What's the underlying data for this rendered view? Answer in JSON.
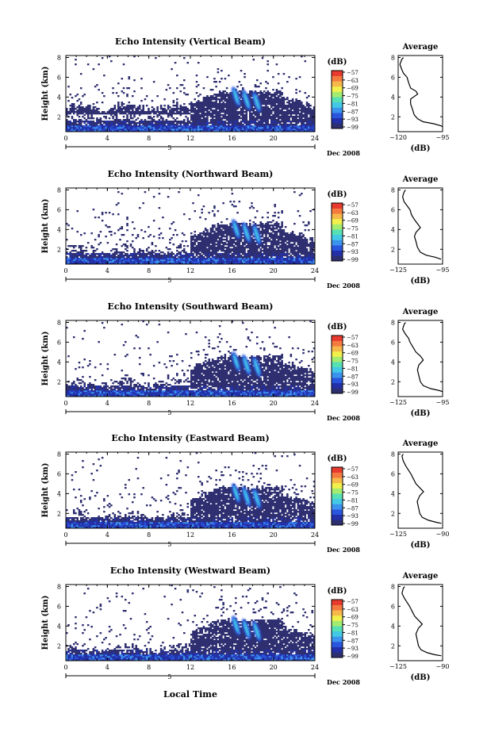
{
  "figure": {
    "x_axis_label": "Local Time",
    "date_label": "Dec 2008",
    "x_day_label": "5",
    "colorbar_unit": "(dB)",
    "profile_title": "Average",
    "profile_xlabel": "(dB)"
  },
  "colors": {
    "scale": [
      "#2e2f70",
      "#2330a8",
      "#2a55dd",
      "#3c93ee",
      "#43c8e6",
      "#56e0b4",
      "#a4ec70",
      "#f1f04c",
      "#f6b84a",
      "#f47a40",
      "#e83a2e"
    ],
    "background_echo": "#2e2f70"
  },
  "chart_data": [
    {
      "type": "heatmap",
      "title": "Echo Intensity (Vertical Beam)",
      "ylabel": "Height (km)",
      "x_ticks": [
        0,
        4,
        8,
        12,
        16,
        20,
        24
      ],
      "y_ticks": [
        2,
        4,
        6,
        8
      ],
      "xlim": [
        0,
        24
      ],
      "ylim": [
        0.5,
        8.2
      ],
      "colorbar_ticks": [
        -57,
        -63,
        -69,
        -75,
        -81,
        -87,
        -93,
        -99
      ],
      "profile": {
        "xlim": [
          -120,
          -95
        ],
        "x_ticks": [
          -120,
          -95
        ],
        "ylim": [
          0.5,
          8.2
        ],
        "y_ticks": [
          2,
          4,
          6,
          8
        ],
        "points": [
          [
            -95,
            1.0
          ],
          [
            -96,
            1.1
          ],
          [
            -100,
            1.3
          ],
          [
            -106,
            1.5
          ],
          [
            -109,
            1.8
          ],
          [
            -111,
            2.2
          ],
          [
            -112,
            2.8
          ],
          [
            -113,
            3.3
          ],
          [
            -113,
            3.8
          ],
          [
            -109,
            4.3
          ],
          [
            -110,
            4.6
          ],
          [
            -113,
            4.9
          ],
          [
            -114,
            5.4
          ],
          [
            -115,
            6.0
          ],
          [
            -117,
            6.4
          ],
          [
            -118,
            6.8
          ],
          [
            -119,
            7.3
          ],
          [
            -118,
            7.8
          ],
          [
            -117,
            8.0
          ]
        ]
      }
    },
    {
      "type": "heatmap",
      "title": "Echo Intensity (Northward Beam)",
      "ylabel": "Height (km)",
      "x_ticks": [
        0,
        4,
        8,
        12,
        16,
        20,
        24
      ],
      "y_ticks": [
        2,
        4,
        6,
        8
      ],
      "xlim": [
        0,
        24
      ],
      "ylim": [
        0.5,
        8.2
      ],
      "colorbar_ticks": [
        -57,
        -63,
        -69,
        -75,
        -81,
        -87,
        -93,
        -99
      ],
      "profile": {
        "xlim": [
          -125,
          -95
        ],
        "x_ticks": [
          -125,
          -95
        ],
        "ylim": [
          0.5,
          8.2
        ],
        "y_ticks": [
          2,
          4,
          6,
          8
        ],
        "points": [
          [
            -96,
            1.0
          ],
          [
            -100,
            1.2
          ],
          [
            -106,
            1.4
          ],
          [
            -110,
            1.7
          ],
          [
            -112,
            2.2
          ],
          [
            -113,
            2.8
          ],
          [
            -114,
            3.3
          ],
          [
            -113,
            3.7
          ],
          [
            -110,
            4.2
          ],
          [
            -112,
            4.6
          ],
          [
            -114,
            5.0
          ],
          [
            -116,
            5.5
          ],
          [
            -117,
            6.0
          ],
          [
            -119,
            6.4
          ],
          [
            -121,
            6.8
          ],
          [
            -122,
            7.3
          ],
          [
            -121,
            7.8
          ],
          [
            -120,
            8.0
          ]
        ]
      }
    },
    {
      "type": "heatmap",
      "title": "Echo Intensity (Southward Beam)",
      "ylabel": "Height (km)",
      "x_ticks": [
        0,
        4,
        8,
        12,
        16,
        20,
        24
      ],
      "y_ticks": [
        2,
        4,
        6,
        8
      ],
      "xlim": [
        0,
        24
      ],
      "ylim": [
        0.5,
        8.2
      ],
      "colorbar_ticks": [
        -57,
        -63,
        -69,
        -75,
        -81,
        -87,
        -93,
        -99
      ],
      "profile": {
        "xlim": [
          -125,
          -95
        ],
        "x_ticks": [
          -125,
          -95
        ],
        "ylim": [
          0.5,
          8.2
        ],
        "y_ticks": [
          2,
          4,
          6,
          8
        ],
        "points": [
          [
            -95,
            1.0
          ],
          [
            -97,
            1.1
          ],
          [
            -103,
            1.3
          ],
          [
            -108,
            1.6
          ],
          [
            -110,
            2.0
          ],
          [
            -111,
            2.6
          ],
          [
            -112,
            3.2
          ],
          [
            -111,
            3.7
          ],
          [
            -108,
            4.2
          ],
          [
            -110,
            4.6
          ],
          [
            -113,
            5.0
          ],
          [
            -115,
            5.5
          ],
          [
            -117,
            6.0
          ],
          [
            -118,
            6.4
          ],
          [
            -120,
            6.8
          ],
          [
            -122,
            7.3
          ],
          [
            -121,
            7.8
          ],
          [
            -120,
            8.0
          ]
        ]
      }
    },
    {
      "type": "heatmap",
      "title": "Echo Intensity (Eastward Beam)",
      "ylabel": "Height (km)",
      "x_ticks": [
        0,
        4,
        8,
        12,
        16,
        20,
        24
      ],
      "y_ticks": [
        2,
        4,
        6,
        8
      ],
      "xlim": [
        0,
        24
      ],
      "ylim": [
        0.5,
        8.2
      ],
      "colorbar_ticks": [
        -57,
        -63,
        -69,
        -75,
        -81,
        -87,
        -93,
        -99
      ],
      "profile": {
        "xlim": [
          -125,
          -90
        ],
        "x_ticks": [
          -125,
          -90
        ],
        "ylim": [
          0.5,
          8.2
        ],
        "y_ticks": [
          2,
          4,
          6,
          8
        ],
        "points": [
          [
            -91,
            1.0
          ],
          [
            -95,
            1.1
          ],
          [
            -101,
            1.3
          ],
          [
            -106,
            1.6
          ],
          [
            -108,
            2.0
          ],
          [
            -109,
            2.6
          ],
          [
            -110,
            3.2
          ],
          [
            -108,
            3.8
          ],
          [
            -105,
            4.2
          ],
          [
            -108,
            4.6
          ],
          [
            -111,
            5.0
          ],
          [
            -113,
            5.5
          ],
          [
            -115,
            6.0
          ],
          [
            -117,
            6.4
          ],
          [
            -119,
            6.8
          ],
          [
            -121,
            7.3
          ],
          [
            -122,
            7.8
          ],
          [
            -121,
            8.0
          ]
        ]
      }
    },
    {
      "type": "heatmap",
      "title": "Echo Intensity (Westward Beam)",
      "ylabel": "Height (km)",
      "x_ticks": [
        0,
        4,
        8,
        12,
        16,
        20,
        24
      ],
      "y_ticks": [
        2,
        4,
        6,
        8
      ],
      "xlim": [
        0,
        24
      ],
      "ylim": [
        0.5,
        8.2
      ],
      "colorbar_ticks": [
        -57,
        -63,
        -69,
        -75,
        -81,
        -87,
        -93,
        -99
      ],
      "profile": {
        "xlim": [
          -125,
          -90
        ],
        "x_ticks": [
          -125,
          -90
        ],
        "ylim": [
          0.5,
          8.2
        ],
        "y_ticks": [
          2,
          4,
          6,
          8
        ],
        "points": [
          [
            -91,
            1.0
          ],
          [
            -96,
            1.1
          ],
          [
            -102,
            1.3
          ],
          [
            -107,
            1.6
          ],
          [
            -109,
            2.0
          ],
          [
            -110,
            2.6
          ],
          [
            -111,
            3.2
          ],
          [
            -109,
            3.8
          ],
          [
            -106,
            4.2
          ],
          [
            -109,
            4.6
          ],
          [
            -112,
            5.0
          ],
          [
            -114,
            5.5
          ],
          [
            -116,
            6.0
          ],
          [
            -118,
            6.4
          ],
          [
            -120,
            6.8
          ],
          [
            -122,
            7.3
          ],
          [
            -121,
            7.8
          ],
          [
            -120,
            8.0
          ]
        ]
      }
    }
  ]
}
